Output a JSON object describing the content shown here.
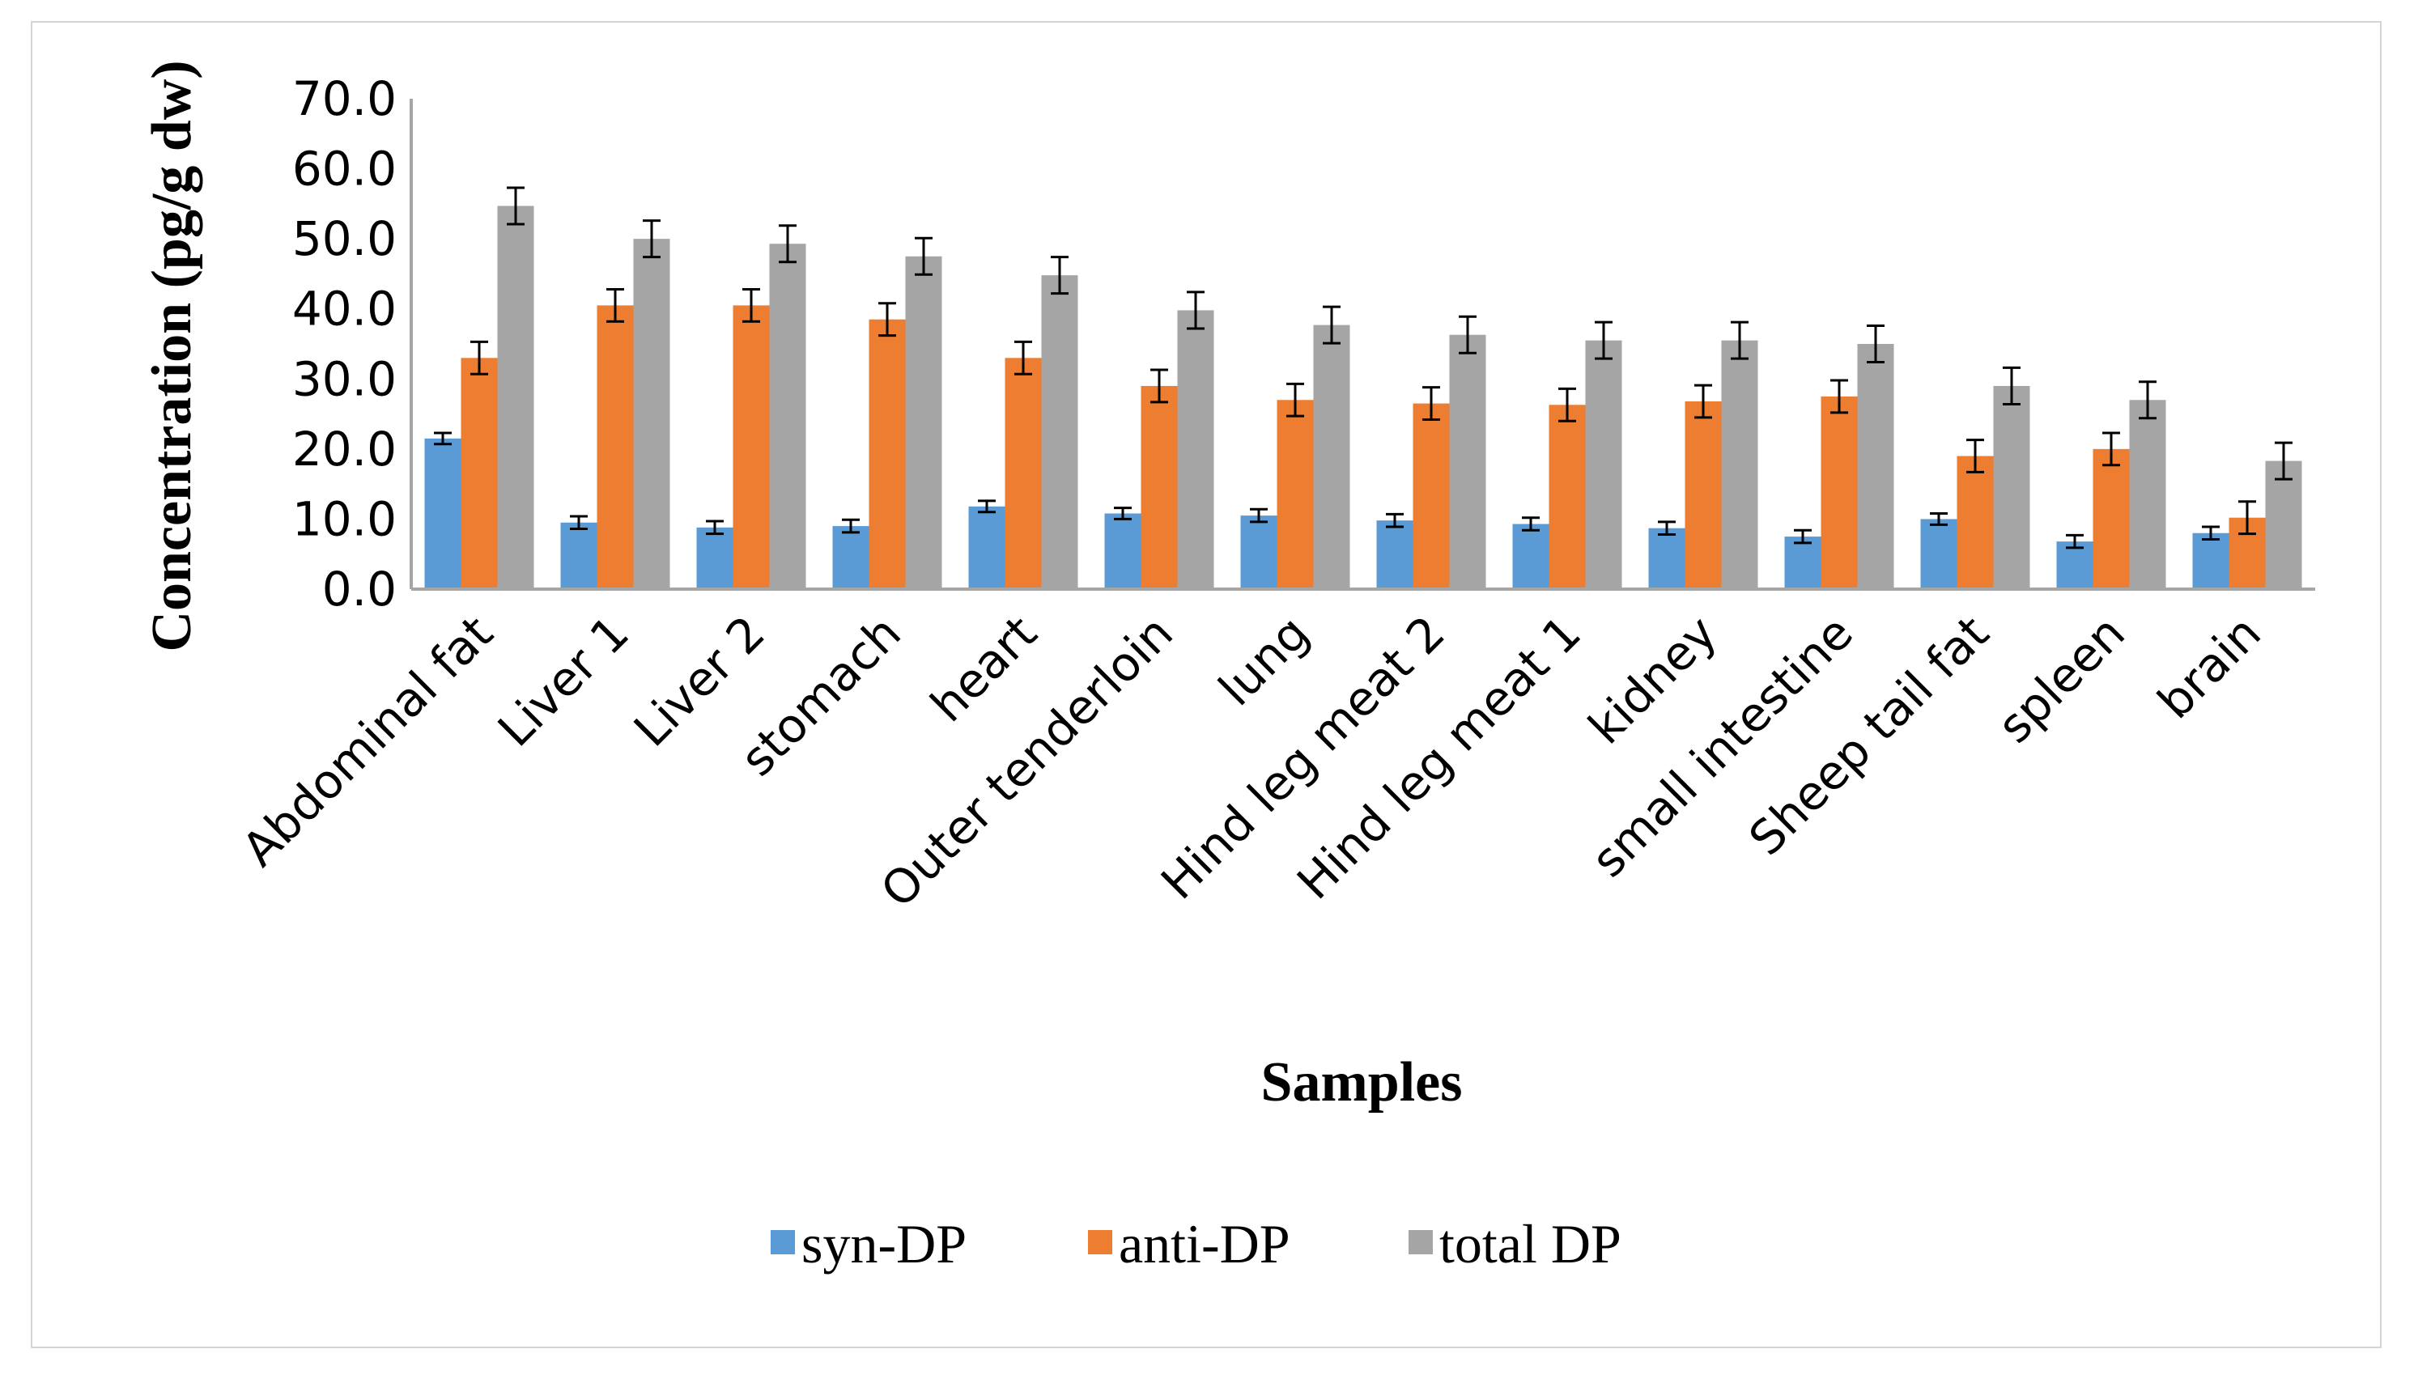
{
  "chart_data": {
    "type": "bar",
    "title": "",
    "xlabel": "Samples",
    "ylabel": "Concentration (pg/g dw)",
    "ylim": [
      0,
      70
    ],
    "yticks": [
      "0.0",
      "10.0",
      "20.0",
      "30.0",
      "40.0",
      "50.0",
      "60.0",
      "70.0"
    ],
    "grid": false,
    "legend_position": "bottom",
    "categories": [
      "Abdominal fat",
      "Liver 1",
      "Liver 2",
      "stomach",
      "heart",
      "Outer tenderloin",
      "lung",
      "Hind leg meat 2",
      "Hind leg meat 1",
      "kidney",
      "small intestine",
      "Sheep tail fat",
      "spleen",
      "brain"
    ],
    "series": [
      {
        "name": "syn-DP",
        "color": "#5b9bd5",
        "values": [
          21.5,
          9.5,
          8.8,
          9.0,
          11.8,
          10.8,
          10.5,
          9.8,
          9.3,
          8.7,
          7.5,
          10.0,
          6.8,
          8.0
        ],
        "errors": [
          0.8,
          0.9,
          0.9,
          0.9,
          0.8,
          0.8,
          0.9,
          0.9,
          0.9,
          0.9,
          0.9,
          0.8,
          0.9,
          0.9
        ]
      },
      {
        "name": "anti-DP",
        "color": "#ed7d31",
        "values": [
          33.0,
          40.5,
          40.5,
          38.5,
          33.0,
          29.0,
          27.0,
          26.5,
          26.3,
          26.8,
          27.5,
          19.0,
          20.0,
          10.2
        ],
        "errors": [
          2.3,
          2.3,
          2.3,
          2.3,
          2.3,
          2.3,
          2.3,
          2.3,
          2.3,
          2.3,
          2.3,
          2.3,
          2.3,
          2.3
        ]
      },
      {
        "name": "total DP",
        "color": "#a5a5a5",
        "values": [
          54.7,
          50.0,
          49.3,
          47.5,
          44.8,
          39.8,
          37.7,
          36.3,
          35.5,
          35.5,
          35.0,
          29.0,
          27.0,
          18.3
        ],
        "errors": [
          2.6,
          2.6,
          2.6,
          2.6,
          2.6,
          2.6,
          2.6,
          2.6,
          2.6,
          2.6,
          2.6,
          2.6,
          2.6,
          2.6
        ]
      }
    ]
  }
}
